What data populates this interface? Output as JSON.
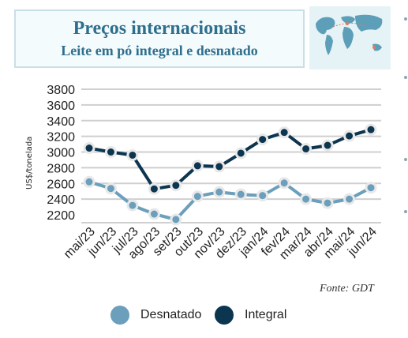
{
  "header": {
    "title": "Preços internacionais",
    "subtitle": "Leite em pó integral e desnatado"
  },
  "source": "Fonte: GDT",
  "colors": {
    "desnatado": "#6b9fbc",
    "integral": "#0c3550",
    "title": "#2e6f8d"
  },
  "icons": {
    "map": "world-map-icon"
  },
  "chart_data": {
    "type": "line",
    "title": "Preços internacionais",
    "subtitle": "Leite em pó integral e desnatado",
    "ylabel": "US$/tonelada",
    "xlabel": "",
    "ylim": [
      2200,
      3800
    ],
    "yticks": [
      2200,
      2400,
      2600,
      2800,
      3000,
      3200,
      3400,
      3600,
      3800
    ],
    "grid": true,
    "legend_position": "bottom",
    "categories": [
      "mai/23",
      "jun/23",
      "jul/23",
      "ago/23",
      "set/23",
      "out/23",
      "nov/23",
      "dez/23",
      "jan/24",
      "fev/24",
      "mar/24",
      "abr/24",
      "mai/24",
      "jun/24"
    ],
    "series": [
      {
        "name": "Desnatado",
        "values": [
          2620,
          2535,
          2320,
          2210,
          2140,
          2435,
          2490,
          2460,
          2445,
          2605,
          2400,
          2350,
          2400,
          2545
        ]
      },
      {
        "name": "Integral",
        "values": [
          3050,
          3000,
          2960,
          2530,
          2575,
          2825,
          2815,
          2985,
          3160,
          3250,
          3040,
          3085,
          3205,
          3285
        ]
      }
    ]
  }
}
